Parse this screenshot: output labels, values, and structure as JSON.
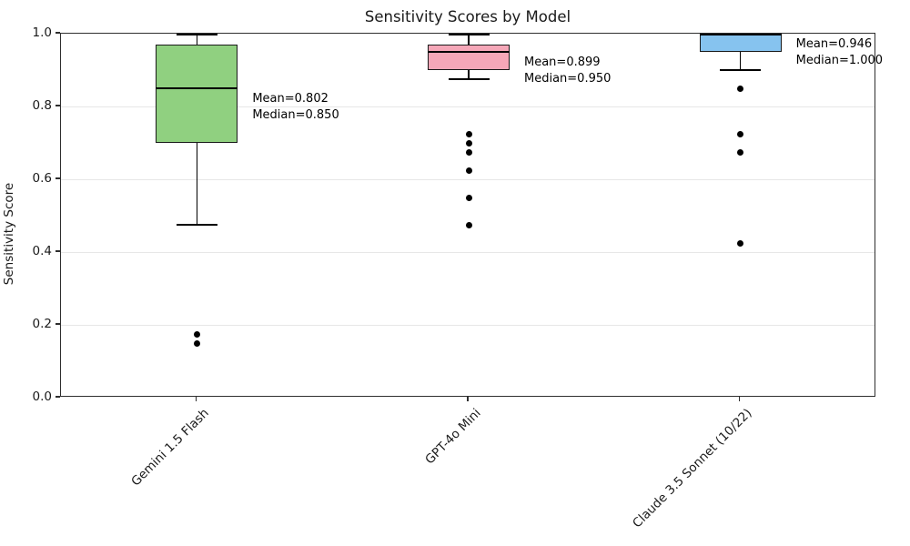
{
  "figure": {
    "title": "Sensitivity Scores by Model"
  },
  "chart_data": {
    "type": "box",
    "title": "Sensitivity Scores by Model",
    "xlabel": "",
    "ylabel": "Sensitivity Score",
    "ylim": [
      0.0,
      1.0
    ],
    "yticks": [
      {
        "value": 0.0,
        "label": "0.0"
      },
      {
        "value": 0.2,
        "label": "0.2"
      },
      {
        "value": 0.4,
        "label": "0.4"
      },
      {
        "value": 0.6,
        "label": "0.6"
      },
      {
        "value": 0.8,
        "label": "0.8"
      },
      {
        "value": 1.0,
        "label": "1.0"
      }
    ],
    "grid": "horizontal-y-only",
    "legend": "none",
    "categories": [
      "Gemini 1.5 Flash",
      "GPT-4o Mini",
      "Claude 3.5 Sonnet (10/22)"
    ],
    "series": [
      {
        "label": "Gemini 1.5 Flash",
        "box_color": "#90d080",
        "whisker_low": 0.475,
        "q1": 0.7,
        "median": 0.85,
        "q3": 0.97,
        "whisker_high": 1.0,
        "mean": 0.802,
        "outliers": [
          0.175,
          0.15
        ],
        "annotation_lines": [
          "Mean=0.802",
          "Median=0.850"
        ]
      },
      {
        "label": "GPT-4o Mini",
        "box_color": "#f5a7b8",
        "whisker_low": 0.875,
        "q1": 0.9,
        "median": 0.95,
        "q3": 0.97,
        "whisker_high": 1.0,
        "mean": 0.899,
        "outliers": [
          0.725,
          0.7,
          0.675,
          0.625,
          0.55,
          0.475
        ],
        "annotation_lines": [
          "Mean=0.899",
          "Median=0.950"
        ]
      },
      {
        "label": "Claude 3.5 Sonnet (10/22)",
        "box_color": "#86c3ef",
        "whisker_low": 0.9,
        "q1": 0.95,
        "median": 1.0,
        "q3": 1.0,
        "whisker_high": 1.0,
        "mean": 0.946,
        "outliers": [
          0.85,
          0.725,
          0.675,
          0.425
        ],
        "annotation_lines": [
          "Mean=0.946",
          "Median=1.000"
        ]
      }
    ],
    "colors": {
      "box_edge": "#1a1a1a",
      "median": "#000000",
      "whisker": "#000000",
      "outlier": "#000000",
      "grid": "#e7e7e7",
      "spine": "#2e2e2e",
      "tick": "#2e2e2e",
      "background": "#ffffff"
    }
  }
}
